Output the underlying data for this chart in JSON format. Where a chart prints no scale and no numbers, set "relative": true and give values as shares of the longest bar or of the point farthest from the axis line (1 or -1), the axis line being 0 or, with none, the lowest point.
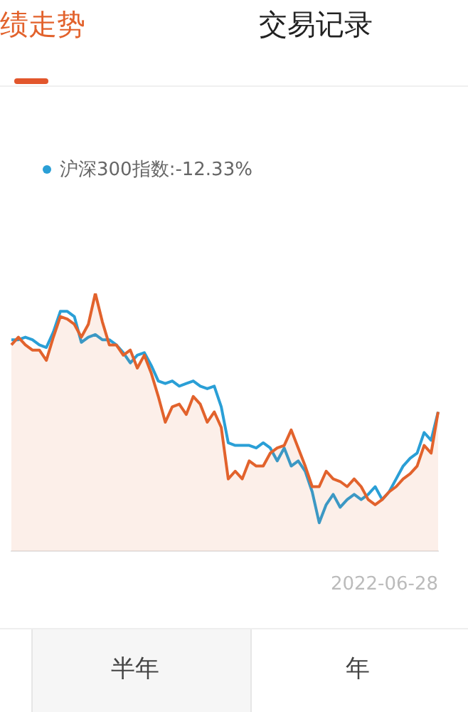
{
  "chart_data": {
    "type": "line",
    "relative": true,
    "legend": "top left",
    "categories": [
      null,
      null,
      null,
      null,
      null,
      null,
      null,
      null,
      null,
      null,
      null,
      null,
      null,
      null,
      null,
      null,
      null,
      null,
      null,
      null,
      null,
      null,
      null,
      null,
      null,
      null,
      null,
      null,
      null,
      null,
      null,
      null,
      null,
      null,
      null,
      null,
      null,
      null,
      null,
      null,
      null,
      null,
      null,
      null,
      null,
      null,
      null,
      null,
      null,
      null,
      null,
      null,
      null,
      null,
      null,
      null,
      null,
      null,
      null,
      null,
      null,
      null
    ],
    "series": [
      {
        "type": "area",
        "color": "#e2622c",
        "values": [
          0.8,
          0.83,
          0.8,
          0.78,
          0.78,
          0.74,
          0.83,
          0.91,
          0.9,
          0.88,
          0.83,
          0.88,
          1,
          0.89,
          0.8,
          0.8,
          0.76,
          0.78,
          0.71,
          0.76,
          0.69,
          0.6,
          0.5,
          0.56,
          0.57,
          0.53,
          0.6,
          0.57,
          0.5,
          0.54,
          0.48,
          0.28,
          0.31,
          0.28,
          0.35,
          0.33,
          0.33,
          0.38,
          0.4,
          0.41,
          0.47,
          0.4,
          0.33,
          0.25,
          0.25,
          0.31,
          0.28,
          0.27,
          0.25,
          0.28,
          0.25,
          0.2,
          0.18,
          0.2,
          0.23,
          0.25,
          0.28,
          0.3,
          0.33,
          0.41,
          0.38,
          0.54
        ]
      },
      {
        "name": "沪深300指数:-12.33%",
        "color": "#2a9fd6",
        "values": [
          0.82,
          0.82,
          0.83,
          0.82,
          0.8,
          0.79,
          0.85,
          0.93,
          0.93,
          0.91,
          0.81,
          0.83,
          0.84,
          0.82,
          0.82,
          0.8,
          0.77,
          0.73,
          0.76,
          0.77,
          0.72,
          0.66,
          0.65,
          0.66,
          0.64,
          0.65,
          0.66,
          0.64,
          0.63,
          0.64,
          0.56,
          0.42,
          0.41,
          0.41,
          0.41,
          0.4,
          0.42,
          0.4,
          0.35,
          0.4,
          0.33,
          0.35,
          0.31,
          0.23,
          0.11,
          0.18,
          0.22,
          0.17,
          0.2,
          0.22,
          0.2,
          0.22,
          0.25,
          0.2,
          0.23,
          0.28,
          0.33,
          0.36,
          0.38,
          0.46,
          0.43,
          0.54
        ]
      }
    ],
    "annotations": [
      "绩走势",
      "交易记录",
      "2022-06-28",
      "半年",
      "年"
    ]
  }
}
